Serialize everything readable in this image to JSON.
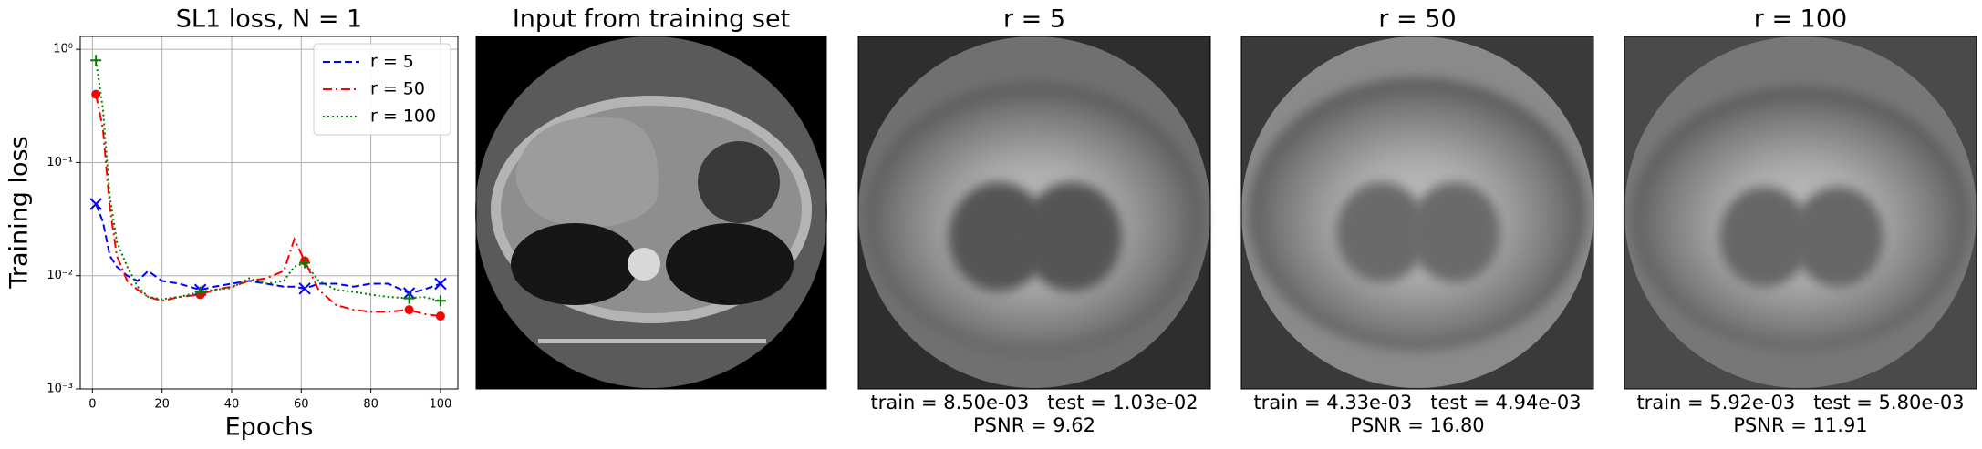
{
  "chart_data": {
    "type": "line",
    "title": "SL1 loss, N = 1",
    "xlabel": "Epochs",
    "ylabel": "Training loss",
    "x": [
      1,
      3,
      5,
      7,
      10,
      13,
      16,
      20,
      25,
      31,
      35,
      40,
      45,
      50,
      55,
      58,
      61,
      65,
      70,
      75,
      80,
      85,
      91,
      95,
      100
    ],
    "series": [
      {
        "name": "r = 5",
        "color": "#0000ff",
        "linestyle": "dashed",
        "marker": "x",
        "values": [
          0.043,
          0.03,
          0.015,
          0.012,
          0.01,
          0.009,
          0.011,
          0.009,
          0.0085,
          0.0075,
          0.008,
          0.0085,
          0.009,
          0.0085,
          0.008,
          0.008,
          0.0077,
          0.0085,
          0.0085,
          0.008,
          0.0085,
          0.0085,
          0.007,
          0.0075,
          0.0085
        ]
      },
      {
        "name": "r = 50",
        "color": "#ff0000",
        "linestyle": "dashdot",
        "marker": "o",
        "values": [
          0.4,
          0.2,
          0.04,
          0.015,
          0.009,
          0.0075,
          0.0065,
          0.006,
          0.0065,
          0.0068,
          0.0075,
          0.008,
          0.009,
          0.0095,
          0.011,
          0.021,
          0.0135,
          0.0075,
          0.0055,
          0.005,
          0.0048,
          0.0048,
          0.005,
          0.0046,
          0.0044
        ]
      },
      {
        "name": "r = 100",
        "color": "#008000",
        "linestyle": "dotted",
        "marker": "+",
        "values": [
          0.8,
          0.3,
          0.05,
          0.02,
          0.012,
          0.008,
          0.0065,
          0.0062,
          0.0065,
          0.0072,
          0.0075,
          0.0078,
          0.0095,
          0.0085,
          0.009,
          0.012,
          0.013,
          0.009,
          0.0075,
          0.0072,
          0.0068,
          0.0065,
          0.0063,
          0.0065,
          0.006
        ]
      }
    ],
    "xlim": [
      -3.5,
      105
    ],
    "xticks": [
      0,
      20,
      40,
      60,
      80,
      100
    ],
    "ylim": [
      0.001,
      1.3
    ],
    "ylog": true,
    "yticks": [
      {
        "value": 0.001,
        "label": "10⁻³"
      },
      {
        "value": 0.01,
        "label": "10⁻²"
      },
      {
        "value": 0.1,
        "label": "10⁻¹"
      },
      {
        "value": 1,
        "label": "10⁰"
      }
    ],
    "grid": true,
    "legend": "upper right"
  },
  "panels": [
    {
      "title": "Input from training set"
    },
    {
      "title": "r = 5",
      "metrics": "train = 8.50e-03   test = 1.03e-02",
      "psnr": "PSNR = 9.62"
    },
    {
      "title": "r = 50",
      "metrics": "train = 4.33e-03   test = 4.94e-03",
      "psnr": "PSNR = 16.80"
    },
    {
      "title": "r = 100",
      "metrics": "train = 5.92e-03   test = 5.80e-03",
      "psnr": "PSNR = 11.91"
    }
  ]
}
